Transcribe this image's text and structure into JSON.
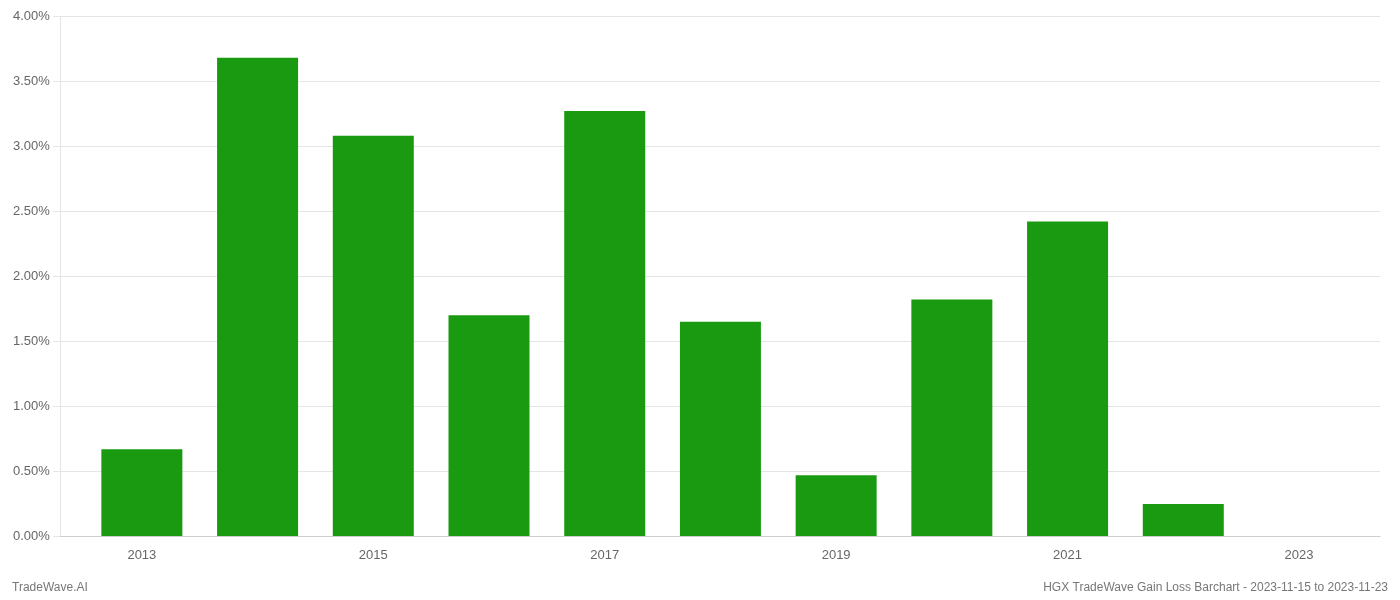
{
  "chart_data": {
    "type": "bar",
    "x": [
      2013,
      2014,
      2015,
      2016,
      2017,
      2018,
      2019,
      2020,
      2021,
      2022
    ],
    "values": [
      0.0067,
      0.0368,
      0.0308,
      0.017,
      0.0327,
      0.0165,
      0.0047,
      0.0182,
      0.0242,
      0.0025
    ],
    "color": "#1a9a10",
    "xlim": [
      2012.3,
      2023.7
    ],
    "xticks": [
      2013,
      2015,
      2017,
      2019,
      2021,
      2023
    ],
    "ylim": [
      0,
      0.04
    ],
    "yticks": [
      {
        "value": 0,
        "label": "0.00%"
      },
      {
        "value": 0.005,
        "label": "0.50%"
      },
      {
        "value": 0.01,
        "label": "1.00%"
      },
      {
        "value": 0.015,
        "label": "1.50%"
      },
      {
        "value": 0.02,
        "label": "2.00%"
      },
      {
        "value": 0.025,
        "label": "2.50%"
      },
      {
        "value": 0.03,
        "label": "3.00%"
      },
      {
        "value": 0.035,
        "label": "3.50%"
      },
      {
        "value": 0.04,
        "label": "4.00%"
      }
    ],
    "grid": true,
    "annotations": [
      "TradeWave.AI",
      "HGX TradeWave Gain Loss Barchart - 2023-11-15 to 2023-11-23"
    ]
  }
}
